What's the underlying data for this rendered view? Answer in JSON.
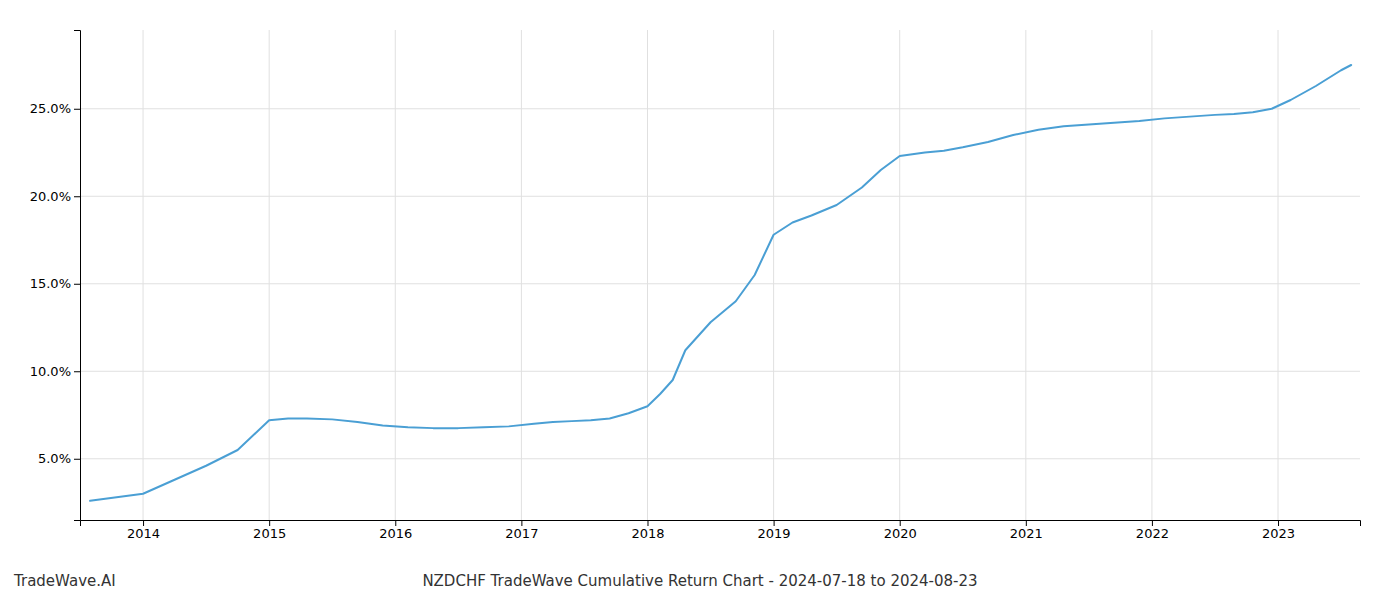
{
  "chart_data": {
    "type": "line",
    "title": "NZDCHF TradeWave Cumulative Return Chart - 2024-07-18 to 2024-08-23",
    "annotations": [
      "TradeWave.AI"
    ],
    "x": [
      2013.58,
      2014.0,
      2014.25,
      2014.5,
      2014.75,
      2015.0,
      2015.15,
      2015.3,
      2015.5,
      2015.7,
      2015.9,
      2016.1,
      2016.3,
      2016.5,
      2016.7,
      2016.9,
      2017.1,
      2017.25,
      2017.4,
      2017.55,
      2017.7,
      2017.85,
      2018.0,
      2018.1,
      2018.2,
      2018.3,
      2018.5,
      2018.7,
      2018.85,
      2019.0,
      2019.15,
      2019.3,
      2019.5,
      2019.7,
      2019.85,
      2020.0,
      2020.1,
      2020.2,
      2020.35,
      2020.5,
      2020.7,
      2020.9,
      2021.1,
      2021.3,
      2021.5,
      2021.7,
      2021.9,
      2022.1,
      2022.3,
      2022.5,
      2022.65,
      2022.8,
      2022.95,
      2023.1,
      2023.3,
      2023.5,
      2023.58
    ],
    "values": [
      2.6,
      3.0,
      3.8,
      4.6,
      5.5,
      7.2,
      7.3,
      7.3,
      7.25,
      7.1,
      6.9,
      6.8,
      6.75,
      6.75,
      6.8,
      6.85,
      7.0,
      7.1,
      7.15,
      7.2,
      7.3,
      7.6,
      8.0,
      8.7,
      9.5,
      11.2,
      12.8,
      14.0,
      15.5,
      17.8,
      18.5,
      18.9,
      19.5,
      20.5,
      21.5,
      22.3,
      22.4,
      22.5,
      22.6,
      22.8,
      23.1,
      23.5,
      23.8,
      24.0,
      24.1,
      24.2,
      24.3,
      24.45,
      24.55,
      24.65,
      24.7,
      24.8,
      25.0,
      25.5,
      26.3,
      27.2,
      27.5
    ],
    "color": "#4a9fd4",
    "xlim": [
      2013.5,
      2023.65
    ],
    "ylim": [
      1.5,
      29.5
    ],
    "xticks": [
      2014,
      2015,
      2016,
      2017,
      2018,
      2019,
      2020,
      2021,
      2022,
      2023
    ],
    "yticks": [
      {
        "value": 5.0,
        "label": "5.0%"
      },
      {
        "value": 10.0,
        "label": "10.0%"
      },
      {
        "value": 15.0,
        "label": "15.0%"
      },
      {
        "value": 20.0,
        "label": "20.0%"
      },
      {
        "value": 25.0,
        "label": "25.0%"
      }
    ],
    "grid": true
  }
}
